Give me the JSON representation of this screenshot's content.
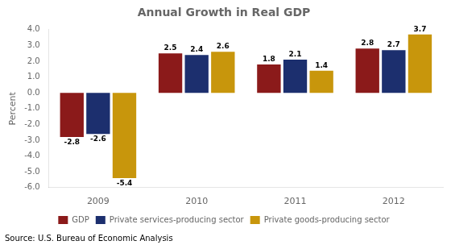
{
  "chart_data": {
    "type": "bar",
    "title": "Annual Growth in Real GDP",
    "y_label": "Percent",
    "annotations": [
      "Source: U.S. Bureau of Economic Analysis"
    ],
    "categories": [
      "2009",
      "2010",
      "2011",
      "2012"
    ],
    "series": [
      {
        "name": "GDP",
        "color": "#8B1A1A",
        "values": [
          -2.8,
          2.5,
          1.8,
          2.8
        ]
      },
      {
        "name": "Private services-producing sector",
        "color": "#1C2F6E",
        "values": [
          -2.6,
          2.4,
          2.1,
          2.7
        ]
      },
      {
        "name": "Private goods-producing sector",
        "color": "#C8960C",
        "values": [
          -5.4,
          2.6,
          1.4,
          3.7
        ]
      }
    ],
    "ylim": [
      -6.0,
      4.0
    ],
    "yticks": [
      {
        "value": -6.0,
        "label": "-6.0"
      },
      {
        "value": -5.0,
        "label": "-5.0"
      },
      {
        "value": -4.0,
        "label": "-4.0"
      },
      {
        "value": -3.0,
        "label": "-3.0"
      },
      {
        "value": -2.0,
        "label": "-2.0"
      },
      {
        "value": -1.0,
        "label": "-1.0"
      },
      {
        "value": 0.0,
        "label": "0.0"
      },
      {
        "value": 1.0,
        "label": "1.0"
      },
      {
        "value": 2.0,
        "label": "2.0"
      },
      {
        "value": 3.0,
        "label": "3.0"
      },
      {
        "value": 4.0,
        "label": "4.0"
      }
    ],
    "grid": false,
    "legend": "bottom",
    "data_labels": true
  }
}
